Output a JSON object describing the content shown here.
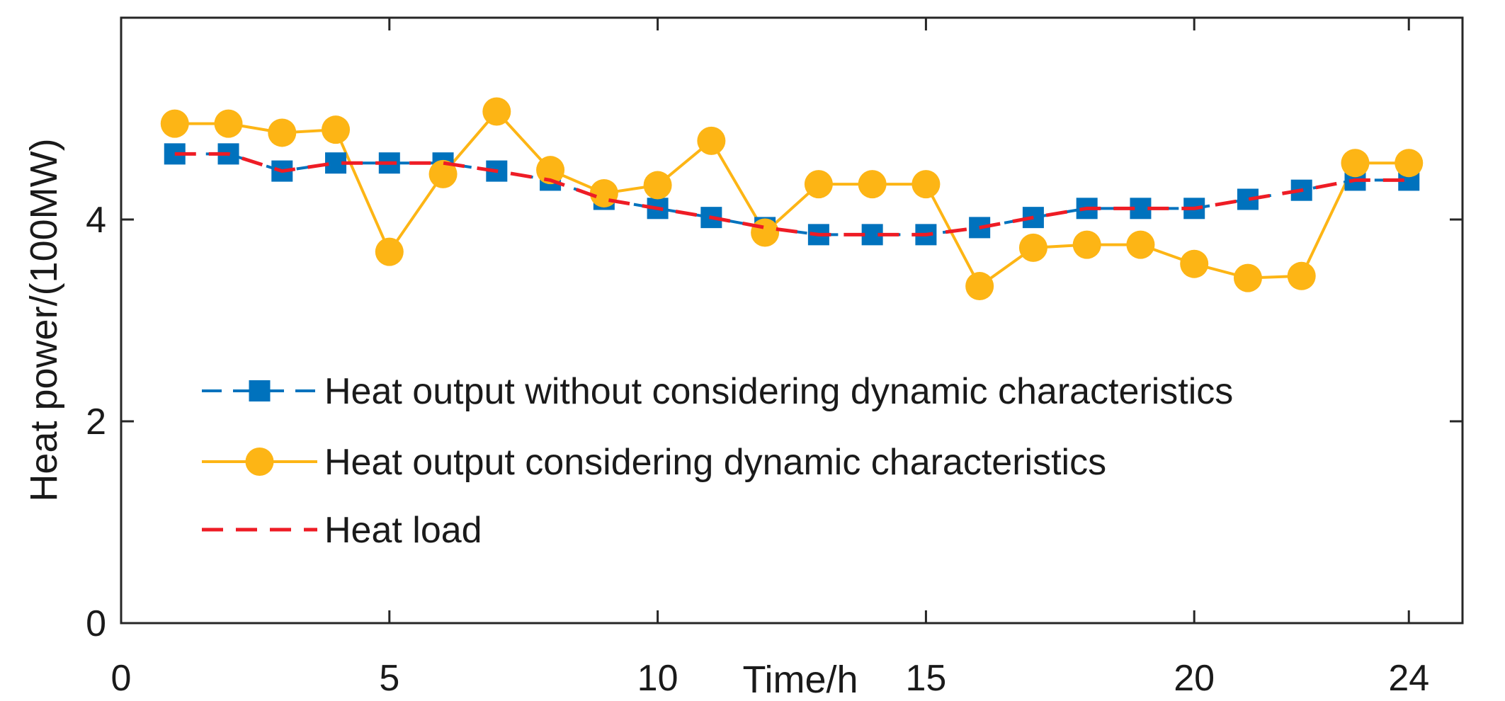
{
  "chart_data": {
    "type": "line",
    "title": "",
    "xlabel": "Time/h",
    "ylabel": "Heat power/(100MW)",
    "xlim": [
      0,
      25
    ],
    "ylim": [
      0,
      6
    ],
    "xticks": [
      0,
      5,
      10,
      15,
      20,
      24
    ],
    "yticks": [
      0,
      2,
      4
    ],
    "grid": false,
    "legend_position": "lower-left",
    "x": [
      1,
      2,
      3,
      4,
      5,
      6,
      7,
      8,
      9,
      10,
      11,
      12,
      13,
      14,
      15,
      16,
      17,
      18,
      19,
      20,
      21,
      22,
      23,
      24
    ],
    "series": [
      {
        "name": "Heat output without considering dynamic characteristics",
        "style": "dashed-square",
        "color": "#0072BD",
        "values": [
          4.65,
          4.65,
          4.48,
          4.56,
          4.56,
          4.56,
          4.48,
          4.39,
          4.2,
          4.11,
          4.02,
          3.92,
          3.85,
          3.85,
          3.85,
          3.92,
          4.02,
          4.11,
          4.11,
          4.11,
          4.2,
          4.29,
          4.39,
          4.39
        ]
      },
      {
        "name": "Heat output considering dynamic characteristics",
        "style": "solid-circle",
        "color": "#FDB515",
        "values": [
          4.95,
          4.95,
          4.86,
          4.89,
          3.68,
          4.45,
          5.07,
          4.49,
          4.26,
          4.34,
          4.78,
          3.87,
          4.35,
          4.35,
          4.35,
          3.34,
          3.72,
          3.75,
          3.75,
          3.56,
          3.42,
          3.44,
          4.56,
          4.56
        ]
      },
      {
        "name": "Heat load",
        "style": "dashed",
        "color": "#EE1C25",
        "values": [
          4.65,
          4.65,
          4.48,
          4.56,
          4.56,
          4.56,
          4.48,
          4.39,
          4.2,
          4.11,
          4.02,
          3.92,
          3.85,
          3.85,
          3.85,
          3.92,
          4.02,
          4.11,
          4.11,
          4.11,
          4.2,
          4.29,
          4.39,
          4.39
        ]
      }
    ]
  }
}
